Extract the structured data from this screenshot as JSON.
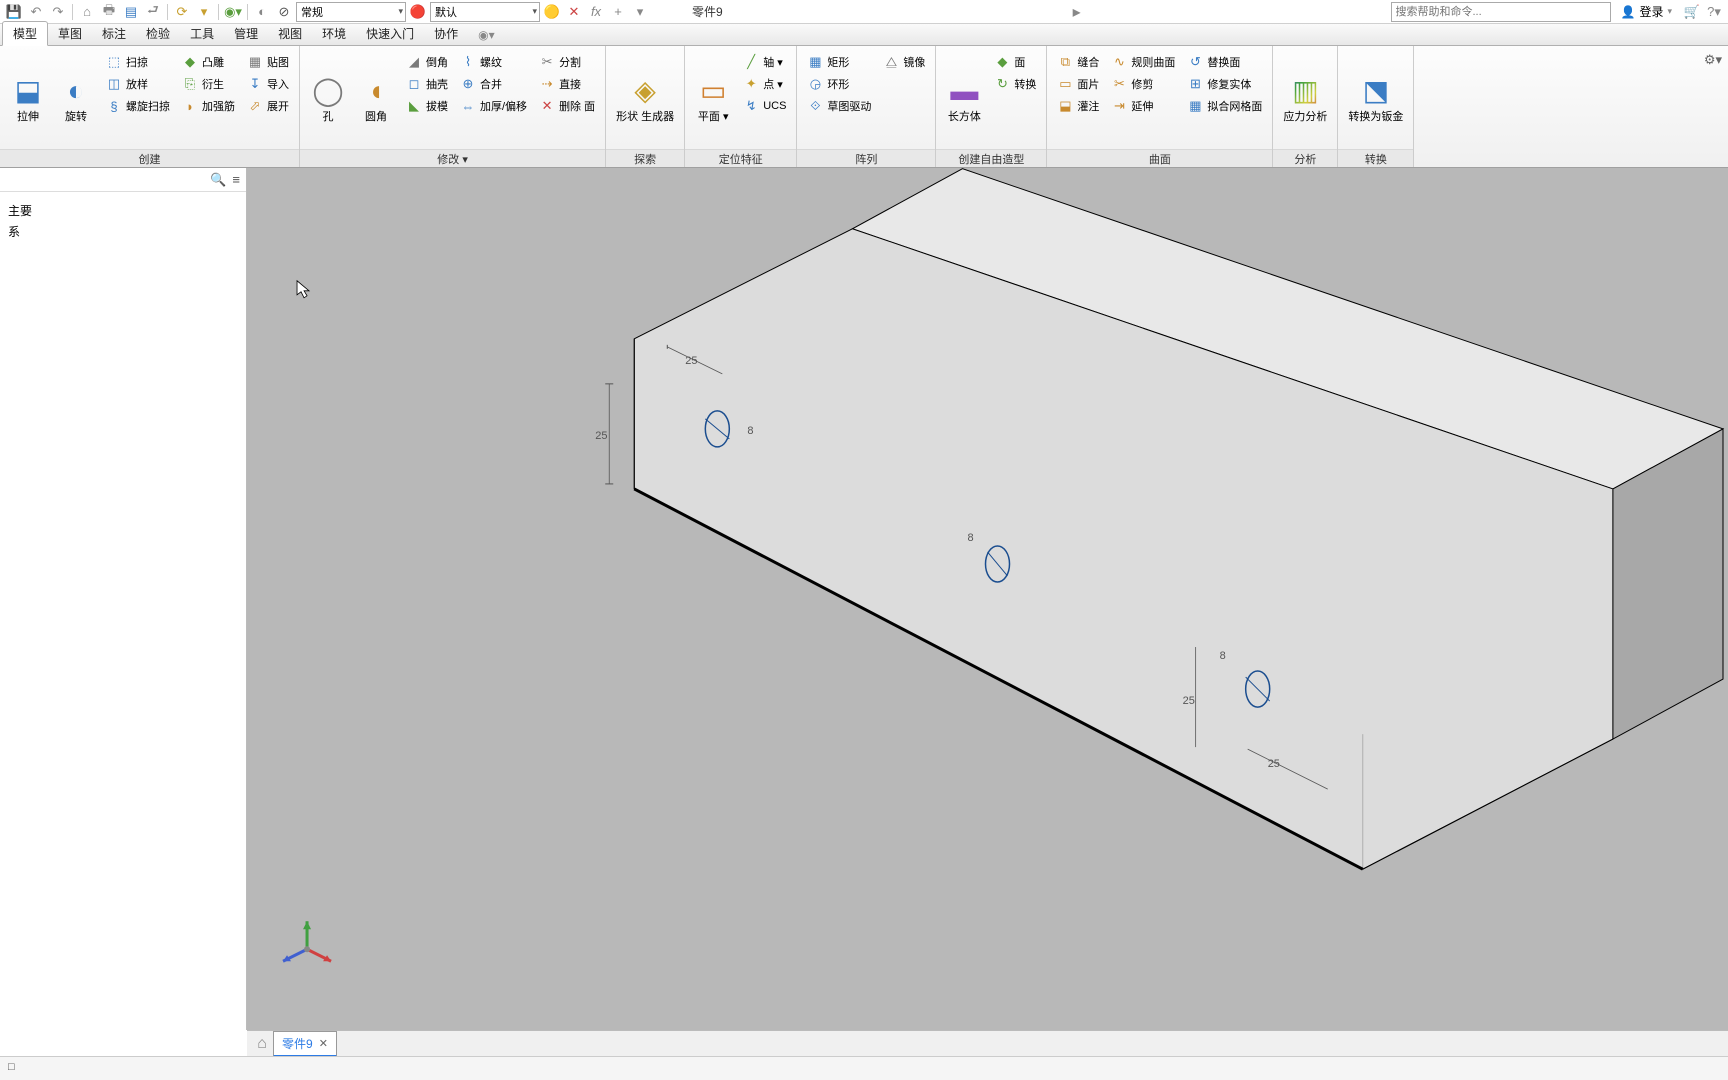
{
  "qat": {
    "style_dropdown": "常规",
    "appearance_dropdown": "默认",
    "title": "零件9",
    "search_placeholder": "搜索帮助和命令...",
    "login": "登录"
  },
  "tabs": [
    "模型",
    "草图",
    "标注",
    "检验",
    "工具",
    "管理",
    "视图",
    "环境",
    "快速入门",
    "协作"
  ],
  "active_tab": 0,
  "ribbon": {
    "panels": [
      {
        "title": "创建",
        "big": [
          {
            "icon": "⬓",
            "label": "拉伸",
            "color": "#3b7dc4"
          },
          {
            "icon": "◐",
            "label": "旋转",
            "color": "#3b7dc4"
          }
        ],
        "cols": [
          [
            {
              "icon": "⬚",
              "label": "扫掠",
              "color": "#3b7dc4"
            },
            {
              "icon": "◫",
              "label": "放样",
              "color": "#3b7dc4"
            },
            {
              "icon": "§",
              "label": "螺旋扫掠",
              "color": "#3b7dc4"
            }
          ],
          [
            {
              "icon": "◆",
              "label": "凸雕",
              "color": "#5a9e3e"
            },
            {
              "icon": "⎘",
              "label": "衍生",
              "color": "#5a9e3e"
            },
            {
              "icon": "◗",
              "label": "加强筋",
              "color": "#c88a2e"
            }
          ],
          [
            {
              "icon": "▦",
              "label": "贴图",
              "color": "#7a7a7a"
            },
            {
              "icon": "↧",
              "label": "导入",
              "color": "#3b7dc4"
            },
            {
              "icon": "⬀",
              "label": "展开",
              "color": "#c88a2e"
            }
          ]
        ]
      },
      {
        "title": "修改 ▾",
        "big": [
          {
            "icon": "◯",
            "label": "孔",
            "color": "#7a7a7a"
          },
          {
            "icon": "◖",
            "label": "圆角",
            "color": "#c88a2e"
          }
        ],
        "cols": [
          [
            {
              "icon": "◢",
              "label": "倒角",
              "color": "#7a7a7a"
            },
            {
              "icon": "◻",
              "label": "抽壳",
              "color": "#3b7dc4"
            },
            {
              "icon": "◣",
              "label": "拔模",
              "color": "#5a9e3e"
            }
          ],
          [
            {
              "icon": "⌇",
              "label": "螺纹",
              "color": "#3b7dc4"
            },
            {
              "icon": "⊕",
              "label": "合并",
              "color": "#3b7dc4"
            },
            {
              "icon": "⇔",
              "label": "加厚/偏移",
              "color": "#3b7dc4"
            }
          ],
          [
            {
              "icon": "✂",
              "label": "分割",
              "color": "#7a7a7a"
            },
            {
              "icon": "⇢",
              "label": "直接",
              "color": "#c88a2e"
            },
            {
              "icon": "✕",
              "label": "删除 面",
              "color": "#c44"
            }
          ]
        ]
      },
      {
        "title": "探索",
        "big": [
          {
            "icon": "◈",
            "label": "形状\n生成器",
            "color": "#c8a030"
          }
        ]
      },
      {
        "title": "定位特征",
        "big": [
          {
            "icon": "▭",
            "label": "平面\n▾",
            "color": "#d08030"
          }
        ],
        "cols": [
          [
            {
              "icon": "╱",
              "label": "轴 ▾",
              "color": "#5a9e3e"
            },
            {
              "icon": "✦",
              "label": "点 ▾",
              "color": "#c8a030"
            },
            {
              "icon": "↯",
              "label": "UCS",
              "color": "#3b7dc4"
            }
          ]
        ]
      },
      {
        "title": "阵列",
        "big": [],
        "cols": [
          [
            {
              "icon": "▦",
              "label": "矩形",
              "color": "#3b7dc4"
            },
            {
              "icon": "◶",
              "label": "环形",
              "color": "#3b7dc4"
            },
            {
              "icon": "⟐",
              "label": "草图驱动",
              "color": "#3b7dc4"
            }
          ],
          [
            {
              "icon": "⧋",
              "label": "镜像",
              "color": "#7a7a7a"
            }
          ]
        ]
      },
      {
        "title": "创建自由造型",
        "big": [
          {
            "icon": "▬",
            "label": "长方体",
            "color": "#9050c0"
          }
        ],
        "cols": [
          [
            {
              "icon": "◆",
              "label": "面",
              "color": "#5a9e3e"
            },
            {
              "icon": "↻",
              "label": "转换",
              "color": "#5a9e3e"
            }
          ]
        ]
      },
      {
        "title": "曲面",
        "big": [],
        "cols": [
          [
            {
              "icon": "⧉",
              "label": "缝合",
              "color": "#c88a2e"
            },
            {
              "icon": "▭",
              "label": "面片",
              "color": "#c88a2e"
            },
            {
              "icon": "⬓",
              "label": "灌注",
              "color": "#c88a2e"
            }
          ],
          [
            {
              "icon": "∿",
              "label": "规则曲面",
              "color": "#c88a2e"
            },
            {
              "icon": "✂",
              "label": "修剪",
              "color": "#c88a2e"
            },
            {
              "icon": "⇥",
              "label": "延伸",
              "color": "#c88a2e"
            }
          ],
          [
            {
              "icon": "↺",
              "label": "替换面",
              "color": "#3b7dc4"
            },
            {
              "icon": "⊞",
              "label": "修复实体",
              "color": "#3b7dc4"
            },
            {
              "icon": "▦",
              "label": "拟合网格面",
              "color": "#3b7dc4"
            }
          ]
        ]
      },
      {
        "title": "分析",
        "big": [
          {
            "icon": "▥",
            "label": "应力分析",
            "color": "#multicolor"
          }
        ]
      },
      {
        "title": "转换",
        "big": [
          {
            "icon": "⬔",
            "label": "转换为钣金",
            "color": "#3b7dc4"
          }
        ]
      }
    ]
  },
  "browser": {
    "items": [
      "主要",
      "系"
    ]
  },
  "viewport": {
    "background": "#b8b8b8",
    "solid_light": "#e0e0e0",
    "solid_mid": "#cccccc",
    "solid_dark": "#999999",
    "edge_color": "#000000",
    "dim_color": "#555555",
    "hole_color": "#1a4d8f",
    "dimensions": {
      "left_h": "25",
      "left_v": "25",
      "left_r": "8",
      "mid_r": "8",
      "right_h": "25",
      "right_v": "25",
      "right_r": "8"
    },
    "triad": {
      "x": "#d04040",
      "y": "#40a040",
      "z": "#4060d0"
    }
  },
  "doctab": {
    "name": "零件9"
  },
  "status": "□"
}
